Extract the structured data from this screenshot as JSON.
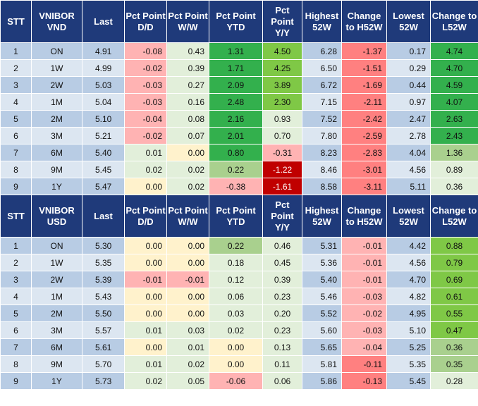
{
  "colors": {
    "header_bg": "#1f3a7a",
    "header_text": "#ffffff",
    "row_blue": "#b8cce4",
    "row_light": "#dce6f1",
    "green_strong": "#33b04d",
    "green_bright": "#7fc846",
    "green_medium": "#a9d08e",
    "green_light": "#e2efda",
    "yellow_light": "#fff2cc",
    "red_light": "#ffb3b3",
    "red_medium": "#ff8080",
    "red_strong": "#c00000"
  },
  "tables": [
    {
      "headers": [
        "STT",
        "VNIBOR VND",
        "Last",
        "Pct Point D/D",
        "Pct Point W/W",
        "Pct Point YTD",
        "Pct Point Y/Y",
        "Highest 52W",
        "Change to H52W",
        "Lowest 52W",
        "Change to L52W"
      ],
      "rows": [
        [
          "1",
          "ON",
          "4.91",
          "-0.08",
          "0.43",
          "1.31",
          "4.50",
          "6.28",
          "-1.37",
          "0.17",
          "4.74"
        ],
        [
          "2",
          "1W",
          "4.99",
          "-0.02",
          "0.39",
          "1.71",
          "4.25",
          "6.50",
          "-1.51",
          "0.29",
          "4.70"
        ],
        [
          "3",
          "2W",
          "5.03",
          "-0.03",
          "0.27",
          "2.09",
          "3.89",
          "6.72",
          "-1.69",
          "0.44",
          "4.59"
        ],
        [
          "4",
          "1M",
          "5.04",
          "-0.03",
          "0.16",
          "2.48",
          "2.30",
          "7.15",
          "-2.11",
          "0.97",
          "4.07"
        ],
        [
          "5",
          "2M",
          "5.10",
          "-0.04",
          "0.08",
          "2.16",
          "0.93",
          "7.52",
          "-2.42",
          "2.47",
          "2.63"
        ],
        [
          "6",
          "3M",
          "5.21",
          "-0.02",
          "0.07",
          "2.01",
          "0.70",
          "7.80",
          "-2.59",
          "2.78",
          "2.43"
        ],
        [
          "7",
          "6M",
          "5.40",
          "0.01",
          "0.00",
          "0.80",
          "-0.31",
          "8.23",
          "-2.83",
          "4.04",
          "1.36"
        ],
        [
          "8",
          "9M",
          "5.45",
          "0.02",
          "0.02",
          "0.22",
          "-1.22",
          "8.46",
          "-3.01",
          "4.56",
          "0.89"
        ],
        [
          "9",
          "1Y",
          "5.47",
          "0.00",
          "0.02",
          "-0.38",
          "-1.61",
          "8.58",
          "-3.11",
          "5.11",
          "0.36"
        ]
      ],
      "cell_colors": [
        [
          "#b8cce4",
          "#b8cce4",
          "#b8cce4",
          "#ffb3b3",
          "#e2efda",
          "#33b04d",
          "#7fc846",
          "#b8cce4",
          "#ff8080",
          "#b8cce4",
          "#33b04d"
        ],
        [
          "#dce6f1",
          "#dce6f1",
          "#dce6f1",
          "#ffb3b3",
          "#e2efda",
          "#33b04d",
          "#7fc846",
          "#dce6f1",
          "#ff8080",
          "#dce6f1",
          "#33b04d"
        ],
        [
          "#b8cce4",
          "#b8cce4",
          "#b8cce4",
          "#ffb3b3",
          "#e2efda",
          "#33b04d",
          "#7fc846",
          "#b8cce4",
          "#ff8080",
          "#b8cce4",
          "#33b04d"
        ],
        [
          "#dce6f1",
          "#dce6f1",
          "#dce6f1",
          "#ffb3b3",
          "#e2efda",
          "#33b04d",
          "#7fc846",
          "#dce6f1",
          "#ff8080",
          "#dce6f1",
          "#33b04d"
        ],
        [
          "#b8cce4",
          "#b8cce4",
          "#b8cce4",
          "#ffb3b3",
          "#e2efda",
          "#33b04d",
          "#e2efda",
          "#b8cce4",
          "#ff8080",
          "#b8cce4",
          "#33b04d"
        ],
        [
          "#dce6f1",
          "#dce6f1",
          "#dce6f1",
          "#ffb3b3",
          "#e2efda",
          "#33b04d",
          "#e2efda",
          "#dce6f1",
          "#ff8080",
          "#dce6f1",
          "#33b04d"
        ],
        [
          "#b8cce4",
          "#b8cce4",
          "#b8cce4",
          "#e2efda",
          "#fff2cc",
          "#33b04d",
          "#ffb3b3",
          "#b8cce4",
          "#ff8080",
          "#b8cce4",
          "#a9d08e"
        ],
        [
          "#dce6f1",
          "#dce6f1",
          "#dce6f1",
          "#e2efda",
          "#e2efda",
          "#a9d08e",
          "#c00000",
          "#dce6f1",
          "#ff8080",
          "#dce6f1",
          "#e2efda"
        ],
        [
          "#b8cce4",
          "#b8cce4",
          "#b8cce4",
          "#fff2cc",
          "#e2efda",
          "#ffb3b3",
          "#c00000",
          "#b8cce4",
          "#ff8080",
          "#b8cce4",
          "#e2efda"
        ]
      ]
    },
    {
      "headers": [
        "STT",
        "VNIBOR USD",
        "Last",
        "Pct Point D/D",
        "Pct Point W/W",
        "Pct Point YTD",
        "Pct Point Y/Y",
        "Highest 52W",
        "Change to H52W",
        "Lowest 52W",
        "Change to L52W"
      ],
      "rows": [
        [
          "1",
          "ON",
          "5.30",
          "0.00",
          "0.00",
          "0.22",
          "0.46",
          "5.31",
          "-0.01",
          "4.42",
          "0.88"
        ],
        [
          "2",
          "1W",
          "5.35",
          "0.00",
          "0.00",
          "0.18",
          "0.45",
          "5.36",
          "-0.01",
          "4.56",
          "0.79"
        ],
        [
          "3",
          "2W",
          "5.39",
          "-0.01",
          "-0.01",
          "0.12",
          "0.39",
          "5.40",
          "-0.01",
          "4.70",
          "0.69"
        ],
        [
          "4",
          "1M",
          "5.43",
          "0.00",
          "0.00",
          "0.06",
          "0.23",
          "5.46",
          "-0.03",
          "4.82",
          "0.61"
        ],
        [
          "5",
          "2M",
          "5.50",
          "0.00",
          "0.00",
          "0.03",
          "0.20",
          "5.52",
          "-0.02",
          "4.95",
          "0.55"
        ],
        [
          "6",
          "3M",
          "5.57",
          "0.01",
          "0.03",
          "0.02",
          "0.23",
          "5.60",
          "-0.03",
          "5.10",
          "0.47"
        ],
        [
          "7",
          "6M",
          "5.61",
          "0.00",
          "0.01",
          "0.00",
          "0.13",
          "5.65",
          "-0.04",
          "5.25",
          "0.36"
        ],
        [
          "8",
          "9M",
          "5.70",
          "0.01",
          "0.02",
          "0.00",
          "0.11",
          "5.81",
          "-0.11",
          "5.35",
          "0.35"
        ],
        [
          "9",
          "1Y",
          "5.73",
          "0.02",
          "0.05",
          "-0.06",
          "0.06",
          "5.86",
          "-0.13",
          "5.45",
          "0.28"
        ]
      ],
      "cell_colors": [
        [
          "#b8cce4",
          "#b8cce4",
          "#b8cce4",
          "#fff2cc",
          "#fff2cc",
          "#a9d08e",
          "#e2efda",
          "#b8cce4",
          "#ffb3b3",
          "#b8cce4",
          "#7fc846"
        ],
        [
          "#dce6f1",
          "#dce6f1",
          "#dce6f1",
          "#fff2cc",
          "#fff2cc",
          "#e2efda",
          "#e2efda",
          "#dce6f1",
          "#ffb3b3",
          "#dce6f1",
          "#7fc846"
        ],
        [
          "#b8cce4",
          "#b8cce4",
          "#b8cce4",
          "#ffb3b3",
          "#ffb3b3",
          "#e2efda",
          "#e2efda",
          "#b8cce4",
          "#ffb3b3",
          "#b8cce4",
          "#7fc846"
        ],
        [
          "#dce6f1",
          "#dce6f1",
          "#dce6f1",
          "#fff2cc",
          "#fff2cc",
          "#e2efda",
          "#e2efda",
          "#dce6f1",
          "#ffb3b3",
          "#dce6f1",
          "#7fc846"
        ],
        [
          "#b8cce4",
          "#b8cce4",
          "#b8cce4",
          "#fff2cc",
          "#fff2cc",
          "#e2efda",
          "#e2efda",
          "#b8cce4",
          "#ffb3b3",
          "#b8cce4",
          "#7fc846"
        ],
        [
          "#dce6f1",
          "#dce6f1",
          "#dce6f1",
          "#e2efda",
          "#e2efda",
          "#e2efda",
          "#e2efda",
          "#dce6f1",
          "#ffb3b3",
          "#dce6f1",
          "#7fc846"
        ],
        [
          "#b8cce4",
          "#b8cce4",
          "#b8cce4",
          "#fff2cc",
          "#e2efda",
          "#fff2cc",
          "#e2efda",
          "#b8cce4",
          "#ffb3b3",
          "#b8cce4",
          "#a9d08e"
        ],
        [
          "#dce6f1",
          "#dce6f1",
          "#dce6f1",
          "#e2efda",
          "#e2efda",
          "#fff2cc",
          "#e2efda",
          "#dce6f1",
          "#ff8080",
          "#dce6f1",
          "#a9d08e"
        ],
        [
          "#b8cce4",
          "#b8cce4",
          "#b8cce4",
          "#e2efda",
          "#e2efda",
          "#ffb3b3",
          "#e2efda",
          "#b8cce4",
          "#ff8080",
          "#b8cce4",
          "#e2efda"
        ]
      ]
    }
  ]
}
